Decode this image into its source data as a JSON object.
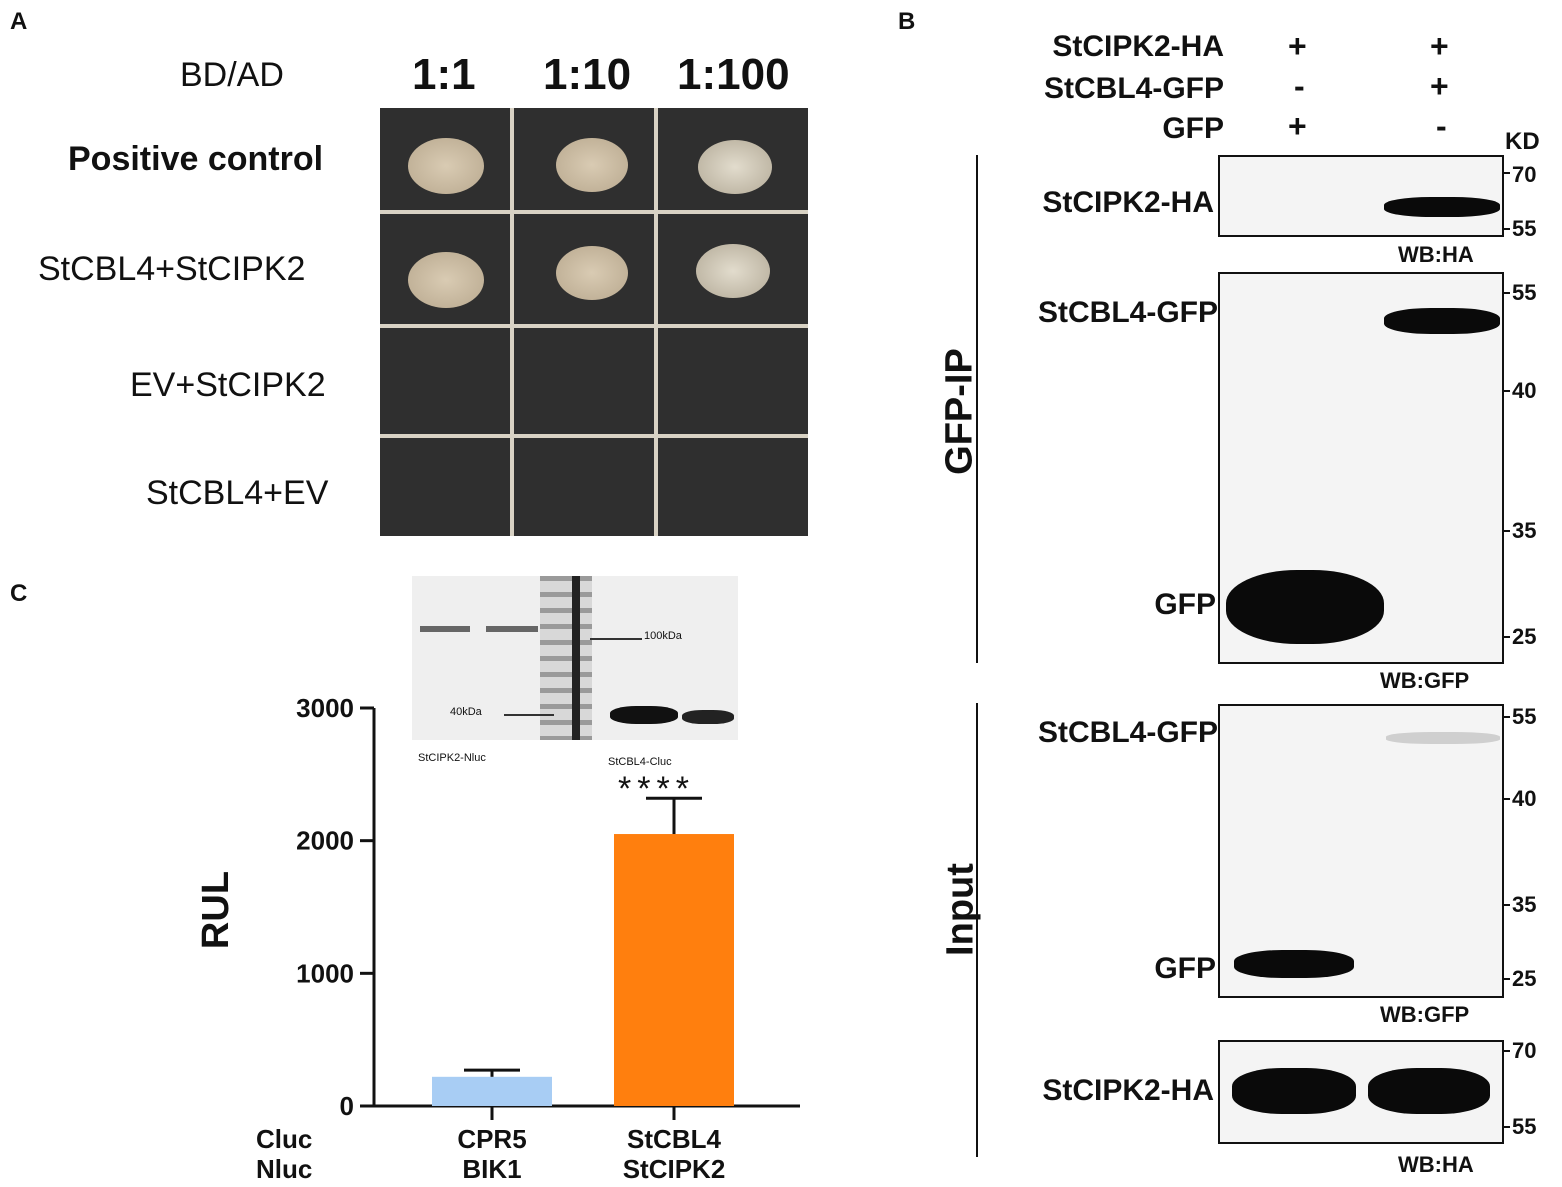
{
  "panels": {
    "a": "A",
    "b": "B",
    "c": "C"
  },
  "panel_a": {
    "header_label": "BD/AD",
    "dilutions": [
      "1:1",
      "1:10",
      "1:100"
    ],
    "rows": [
      "Positive control",
      "StCBL4+StCIPK2",
      "EV+StCIPK2",
      "StCBL4+EV"
    ]
  },
  "panel_b": {
    "conditions": [
      {
        "label": "StCIPK2-HA",
        "lane1": "+",
        "lane2": "+"
      },
      {
        "label": "StCBL4-GFP",
        "lane1": "-",
        "lane2": "+"
      },
      {
        "label": "GFP",
        "lane1": "+",
        "lane2": "-"
      }
    ],
    "kd_unit": "KD",
    "group_ip": "GFP-IP",
    "group_input": "Input",
    "blots": [
      {
        "bands": [
          "StCIPK2-HA"
        ],
        "wb": "WB:HA",
        "markers": [
          "70",
          "55"
        ]
      },
      {
        "bands": [
          "StCBL4-GFP",
          "GFP"
        ],
        "wb": "WB:GFP",
        "markers": [
          "55",
          "40",
          "35",
          "25"
        ]
      },
      {
        "bands": [
          "StCBL4-GFP",
          "GFP"
        ],
        "wb": "WB:GFP",
        "markers": [
          "55",
          "40",
          "35",
          "25"
        ]
      },
      {
        "bands": [
          "StCIPK2-HA"
        ],
        "wb": "WB:HA",
        "markers": [
          "70",
          "55"
        ]
      }
    ]
  },
  "panel_c": {
    "gel": {
      "marker_100": "100kDa",
      "marker_40": "40kDa",
      "label_left": "StCIPK2-Nluc",
      "label_right": "StCBL4-Cluc"
    },
    "row_labels": [
      "Cluc",
      "Nluc"
    ],
    "significance": "****"
  },
  "chart_data": {
    "type": "bar",
    "categories": [
      "CPR5 BIK1",
      "StCBL4 StCIPK2"
    ],
    "category_lines": [
      [
        "CPR5",
        "BIK1"
      ],
      [
        "StCBL4",
        "StCIPK2"
      ]
    ],
    "values": [
      220,
      2050
    ],
    "errors": [
      50,
      270
    ],
    "colors": [
      "#a8cdf4",
      "#ff7f0e"
    ],
    "ylabel": "RUL",
    "ylim": [
      0,
      3000
    ],
    "yticks": [
      "0",
      "1000",
      "2000",
      "3000"
    ]
  }
}
